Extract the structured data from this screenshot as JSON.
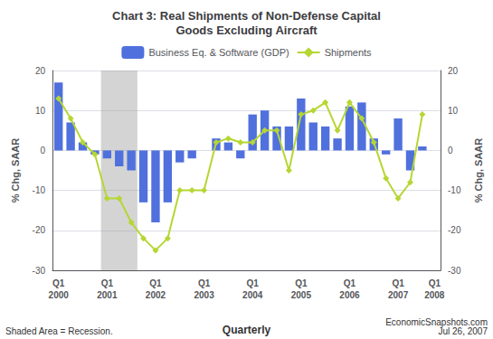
{
  "chart_data": {
    "type": "bar",
    "title": "Chart 3: Real Shipments of Non-Defense Capital\nGoods Excluding Aircraft",
    "categories": [
      "Q1\n2000",
      null,
      null,
      null,
      "Q1\n2001",
      null,
      null,
      null,
      "Q1\n2002",
      null,
      null,
      null,
      "Q1\n2003",
      null,
      null,
      null,
      "Q1\n2004",
      null,
      null,
      null,
      "Q1\n2005",
      null,
      null,
      null,
      "Q1\n2006",
      null,
      null,
      null,
      "Q1\n2007",
      null,
      null,
      "Q1\n2008"
    ],
    "series": [
      {
        "name": "Business Eq. & Software (GDP)",
        "type": "bar",
        "values": [
          17,
          7,
          2,
          -1,
          -2,
          -4,
          -5,
          -13,
          -18,
          -13,
          -3,
          -2,
          0,
          3,
          2,
          -2,
          9,
          10,
          6,
          6,
          13,
          7,
          6,
          3,
          11,
          12,
          3,
          -1,
          8,
          -5,
          1,
          null
        ]
      },
      {
        "name": "Shipments",
        "type": "line",
        "marker": "diamond",
        "values": [
          13,
          8,
          2,
          -1,
          -12,
          -12,
          -18,
          -22,
          -25,
          -22,
          -10,
          -10,
          -10,
          2,
          3,
          2,
          2,
          5,
          5,
          -5,
          9,
          10,
          12,
          5,
          12,
          8,
          2,
          -7,
          -12,
          -8,
          9,
          null
        ]
      }
    ],
    "ylabel": "% Chg, SAAR",
    "y2label": "% Chg, SAAR",
    "ylim": [
      -30,
      20
    ],
    "yticks": [
      -30,
      -20,
      -10,
      0,
      10,
      20
    ],
    "y2lim": [
      -30,
      20
    ],
    "y2ticks": [
      -30,
      -20,
      -10,
      0,
      10,
      20
    ],
    "grid": true,
    "legend": "top",
    "shaded": {
      "from": 4,
      "to": 6
    },
    "annotations": [
      "Shaded Area = Recession.",
      "Quarterly",
      "EconomicSnapshots.com\nJul 26, 2007"
    ]
  }
}
